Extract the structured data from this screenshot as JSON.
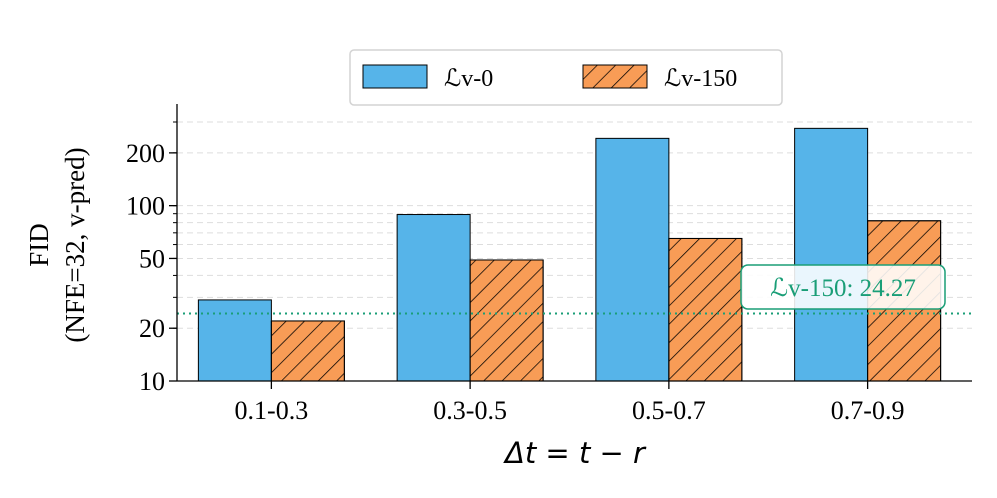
{
  "chart_data": {
    "type": "bar",
    "categories": [
      "0.1-0.3",
      "0.3-0.5",
      "0.5-0.7",
      "0.7-0.9"
    ],
    "series": [
      {
        "name": "ℒv-0",
        "values": [
          29,
          89,
          242,
          276
        ],
        "color": "#56B4E9",
        "hatch": false
      },
      {
        "name": "ℒv-150",
        "values": [
          22,
          49,
          65,
          82
        ],
        "color": "#F89C56",
        "hatch": true
      }
    ],
    "xlabel": "Δt = t − r",
    "ylabel": [
      "FID",
      "(NFE=32, v-pred)"
    ],
    "yscale": "log",
    "ylim": [
      10,
      380
    ],
    "yticks": [
      10,
      20,
      50,
      100,
      200
    ],
    "ytick_labels": [
      "10",
      "20",
      "50",
      "100",
      "200"
    ],
    "grid": "y-dashed",
    "legend": "top-center",
    "reference_line": {
      "value": 24.27,
      "color": "#1A9E77",
      "style": "dotted"
    },
    "annotation": {
      "text": "ℒv-150: 24.27",
      "color": "#1A9E77"
    }
  }
}
